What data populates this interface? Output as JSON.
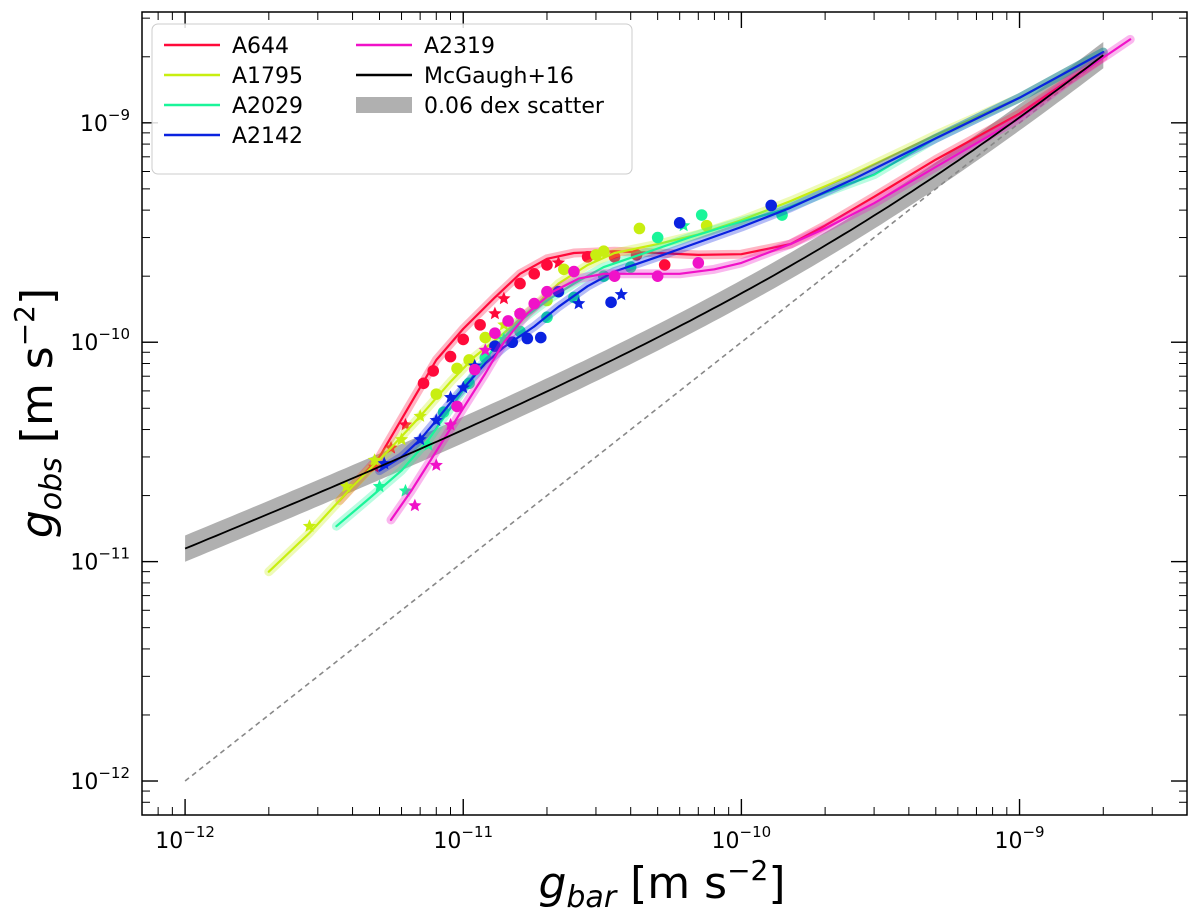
{
  "chart_data": {
    "type": "line",
    "scale": "log-log",
    "xlabel": {
      "sym": "g",
      "sub": "bar",
      "unit": " [m s",
      "sup": "−2",
      "end": "]"
    },
    "ylabel": {
      "sym": "g",
      "sub": "obs",
      "unit": " [m s",
      "sup": "−2",
      "end": "]"
    },
    "xlim": [
      7e-13,
      4e-09
    ],
    "ylim": [
      7e-13,
      3.2e-09
    ],
    "xticks": [
      {
        "value": 1e-12,
        "base": "10",
        "exp": "−12"
      },
      {
        "value": 1e-11,
        "base": "10",
        "exp": "−11"
      },
      {
        "value": 1e-10,
        "base": "10",
        "exp": "−10"
      },
      {
        "value": 1e-09,
        "base": "10",
        "exp": "−9"
      }
    ],
    "yticks": [
      {
        "value": 1e-12,
        "base": "10",
        "exp": "−12"
      },
      {
        "value": 1e-11,
        "base": "10",
        "exp": "−11"
      },
      {
        "value": 1e-10,
        "base": "10",
        "exp": "−10"
      },
      {
        "value": 1e-09,
        "base": "10",
        "exp": "−9"
      }
    ],
    "legend": {
      "position": "top-left",
      "entries": [
        {
          "label": "A644",
          "color": "#ff0a3a",
          "kind": "line"
        },
        {
          "label": "A1795",
          "color": "#c8ee10",
          "kind": "line"
        },
        {
          "label": "A2029",
          "color": "#1af59a",
          "kind": "line"
        },
        {
          "label": "A2142",
          "color": "#0a22e0",
          "kind": "line"
        },
        {
          "label": "A2319",
          "color": "#f012c8",
          "kind": "line"
        },
        {
          "label": "McGaugh+16",
          "color": "#000000",
          "kind": "line"
        },
        {
          "label": "0.06 dex scatter",
          "color": "#b0b0b0",
          "kind": "band"
        }
      ]
    },
    "reference_lines": [
      {
        "name": "one-to-one",
        "style": "dashed",
        "color": "#888888",
        "x": [
          1e-12,
          2e-09
        ],
        "y": [
          1e-12,
          2e-09
        ]
      }
    ],
    "mcgaugh": {
      "name": "McGaugh+16",
      "g_dagger": 1.2e-10,
      "x_range": [
        1e-12,
        2e-09
      ],
      "scatter_dex": 0.06
    },
    "series": [
      {
        "name": "A644",
        "color": "#ff0a3a",
        "curve": [
          [
            3.6e-12,
            1.9e-11
          ],
          [
            5e-12,
            3e-11
          ],
          [
            6.5e-12,
            5.3e-11
          ],
          [
            8e-12,
            8.3e-11
          ],
          [
            1e-11,
            1.15e-10
          ],
          [
            1.3e-11,
            1.6e-10
          ],
          [
            1.6e-11,
            2.05e-10
          ],
          [
            2e-11,
            2.4e-10
          ],
          [
            2.5e-11,
            2.55e-10
          ],
          [
            3.5e-11,
            2.6e-10
          ],
          [
            5e-11,
            2.55e-10
          ],
          [
            7e-11,
            2.5e-10
          ],
          [
            1e-10,
            2.52e-10
          ],
          [
            1.5e-10,
            2.8e-10
          ],
          [
            2e-10,
            3.4e-10
          ],
          [
            3e-10,
            4.6e-10
          ],
          [
            5e-10,
            6.8e-10
          ],
          [
            1e-09,
            1.1e-09
          ],
          [
            2e-09,
            2e-09
          ]
        ],
        "points": [
          [
            4.8e-12,
            2.7e-11,
            "s"
          ],
          [
            5.5e-12,
            3.3e-11,
            "s"
          ],
          [
            6.2e-12,
            4.2e-11,
            "s"
          ],
          [
            7.2e-12,
            6.5e-11,
            "c"
          ],
          [
            7.8e-12,
            7.4e-11,
            "c"
          ],
          [
            9e-12,
            8.6e-11,
            "c"
          ],
          [
            1e-11,
            1.03e-10,
            "c"
          ],
          [
            1.15e-11,
            1.2e-10,
            "c"
          ],
          [
            1.3e-11,
            1.35e-10,
            "s"
          ],
          [
            1.4e-11,
            1.58e-10,
            "s"
          ],
          [
            1.6e-11,
            1.85e-10,
            "c"
          ],
          [
            1.8e-11,
            2.05e-10,
            "c"
          ],
          [
            2e-11,
            2.25e-10,
            "c"
          ],
          [
            2.2e-11,
            2.3e-10,
            "s"
          ],
          [
            2.8e-11,
            2.45e-10,
            "c"
          ],
          [
            3.5e-11,
            2.45e-10,
            "c"
          ],
          [
            4.2e-11,
            2.5e-10,
            "c"
          ],
          [
            5.3e-11,
            2.25e-10,
            "c"
          ]
        ]
      },
      {
        "name": "A1795",
        "color": "#c8ee10",
        "curve": [
          [
            2e-12,
            9e-12
          ],
          [
            2.8e-12,
            1.35e-11
          ],
          [
            4e-12,
            2.2e-11
          ],
          [
            5.5e-12,
            3.3e-11
          ],
          [
            7e-12,
            4.6e-11
          ],
          [
            9e-12,
            6.6e-11
          ],
          [
            1.1e-11,
            8.6e-11
          ],
          [
            1.4e-11,
            1.1e-10
          ],
          [
            1.8e-11,
            1.45e-10
          ],
          [
            2.2e-11,
            1.85e-10
          ],
          [
            2.8e-11,
            2.25e-10
          ],
          [
            3.5e-11,
            2.55e-10
          ],
          [
            5e-11,
            2.8e-10
          ],
          [
            7e-11,
            3.1e-10
          ],
          [
            1e-10,
            3.6e-10
          ],
          [
            1.5e-10,
            4.4e-10
          ],
          [
            2.5e-10,
            5.8e-10
          ],
          [
            5e-10,
            8.8e-10
          ],
          [
            1e-09,
            1.3e-09
          ],
          [
            2e-09,
            2.1e-09
          ]
        ],
        "points": [
          [
            2.8e-12,
            1.45e-11,
            "s"
          ],
          [
            3.8e-12,
            2.2e-11,
            "s"
          ],
          [
            4.8e-12,
            2.9e-11,
            "s"
          ],
          [
            6e-12,
            3.6e-11,
            "s"
          ],
          [
            7e-12,
            4.6e-11,
            "s"
          ],
          [
            8e-12,
            5.8e-11,
            "c"
          ],
          [
            9.5e-12,
            7.6e-11,
            "c"
          ],
          [
            1.05e-11,
            8.3e-11,
            "c"
          ],
          [
            1.2e-11,
            1.05e-10,
            "c"
          ],
          [
            1.4e-11,
            1.2e-10,
            "s"
          ],
          [
            1.6e-11,
            1.35e-10,
            "s"
          ],
          [
            2e-11,
            1.55e-10,
            "c"
          ],
          [
            2.3e-11,
            2.15e-10,
            "c"
          ],
          [
            3e-11,
            2.5e-10,
            "c"
          ],
          [
            3.2e-11,
            2.6e-10,
            "c"
          ],
          [
            4.3e-11,
            3.3e-10,
            "c"
          ],
          [
            7.5e-11,
            3.4e-10,
            "c"
          ]
        ]
      },
      {
        "name": "A2029",
        "color": "#1af59a",
        "curve": [
          [
            3.5e-12,
            1.45e-11
          ],
          [
            4.5e-12,
            1.9e-11
          ],
          [
            6e-12,
            2.6e-11
          ],
          [
            7.5e-12,
            3.6e-11
          ],
          [
            9e-12,
            5e-11
          ],
          [
            1.1e-11,
            7.2e-11
          ],
          [
            1.3e-11,
            9.5e-11
          ],
          [
            1.6e-11,
            1.25e-10
          ],
          [
            2e-11,
            1.55e-10
          ],
          [
            2.5e-11,
            1.85e-10
          ],
          [
            3.2e-11,
            2.2e-10
          ],
          [
            4.5e-11,
            2.55e-10
          ],
          [
            6.5e-11,
            3e-10
          ],
          [
            1e-10,
            3.55e-10
          ],
          [
            1.4e-10,
            4e-10
          ],
          [
            2e-10,
            4.8e-10
          ],
          [
            3e-10,
            5.8e-10
          ],
          [
            5e-10,
            8.5e-10
          ],
          [
            1e-09,
            1.3e-09
          ],
          [
            2e-09,
            2.1e-09
          ]
        ],
        "points": [
          [
            5e-12,
            2.2e-11,
            "s"
          ],
          [
            6.2e-12,
            2.1e-11,
            "s"
          ],
          [
            7.5e-12,
            3.4e-11,
            "s"
          ],
          [
            8.5e-12,
            4.8e-11,
            "c"
          ],
          [
            1.05e-11,
            6.5e-11,
            "c"
          ],
          [
            1.2e-11,
            8.5e-11,
            "c"
          ],
          [
            1.4e-11,
            1.03e-10,
            "s"
          ],
          [
            1.6e-11,
            1.12e-10,
            "c"
          ],
          [
            2e-11,
            1.3e-10,
            "c"
          ],
          [
            2.5e-11,
            1.6e-10,
            "c"
          ],
          [
            3.2e-11,
            2e-10,
            "c"
          ],
          [
            4e-11,
            2.2e-10,
            "c"
          ],
          [
            5e-11,
            3e-10,
            "c"
          ],
          [
            6.2e-11,
            3.4e-10,
            "s"
          ],
          [
            7.2e-11,
            3.8e-10,
            "c"
          ],
          [
            1.4e-10,
            3.8e-10,
            "c"
          ]
        ]
      },
      {
        "name": "A2142",
        "color": "#0a22e0",
        "curve": [
          [
            5e-12,
            2.6e-11
          ],
          [
            6e-12,
            3e-11
          ],
          [
            7e-12,
            3.6e-11
          ],
          [
            8e-12,
            4.4e-11
          ],
          [
            9e-12,
            5.3e-11
          ],
          [
            1.05e-11,
            6.6e-11
          ],
          [
            1.2e-11,
            8e-11
          ],
          [
            1.4e-11,
            9.5e-11
          ],
          [
            1.8e-11,
            1.18e-10
          ],
          [
            2.2e-11,
            1.45e-10
          ],
          [
            2.8e-11,
            1.8e-10
          ],
          [
            3.5e-11,
            2.1e-10
          ],
          [
            5e-11,
            2.45e-10
          ],
          [
            7e-11,
            2.85e-10
          ],
          [
            1e-10,
            3.35e-10
          ],
          [
            1.5e-10,
            4.1e-10
          ],
          [
            2.5e-10,
            5.5e-10
          ],
          [
            5e-10,
            8.5e-10
          ],
          [
            1e-09,
            1.3e-09
          ],
          [
            2e-09,
            2.1e-09
          ]
        ],
        "points": [
          [
            5.2e-12,
            2.8e-11,
            "s"
          ],
          [
            7e-12,
            3.6e-11,
            "s"
          ],
          [
            8e-12,
            4.4e-11,
            "s"
          ],
          [
            9e-12,
            5.6e-11,
            "s"
          ],
          [
            1e-11,
            6.2e-11,
            "s"
          ],
          [
            1.1e-11,
            7.8e-11,
            "s"
          ],
          [
            1.3e-11,
            9.6e-11,
            "c"
          ],
          [
            1.5e-11,
            1e-10,
            "c"
          ],
          [
            1.7e-11,
            1.04e-10,
            "c"
          ],
          [
            1.9e-11,
            1.05e-10,
            "c"
          ],
          [
            2.2e-11,
            1.7e-10,
            "c"
          ],
          [
            2.6e-11,
            1.5e-10,
            "s"
          ],
          [
            3.4e-11,
            1.52e-10,
            "c"
          ],
          [
            3.7e-11,
            1.65e-10,
            "s"
          ],
          [
            6e-11,
            3.5e-10,
            "c"
          ],
          [
            1.28e-10,
            4.2e-10,
            "c"
          ]
        ]
      },
      {
        "name": "A2319",
        "color": "#f012c8",
        "curve": [
          [
            5.5e-12,
            1.55e-11
          ],
          [
            6.5e-12,
            2.1e-11
          ],
          [
            7.5e-12,
            2.8e-11
          ],
          [
            8.5e-12,
            3.6e-11
          ],
          [
            1e-11,
            5e-11
          ],
          [
            1.2e-11,
            7.2e-11
          ],
          [
            1.4e-11,
            1e-10
          ],
          [
            1.7e-11,
            1.35e-10
          ],
          [
            2.1e-11,
            1.7e-10
          ],
          [
            2.6e-11,
            1.95e-10
          ],
          [
            3.2e-11,
            2.05e-10
          ],
          [
            4e-11,
            2.05e-10
          ],
          [
            6e-11,
            2.05e-10
          ],
          [
            8e-11,
            2.15e-10
          ],
          [
            1e-10,
            2.3e-10
          ],
          [
            1.5e-10,
            2.8e-10
          ],
          [
            2e-10,
            3.3e-10
          ],
          [
            3e-10,
            4.3e-10
          ],
          [
            5e-10,
            6.3e-10
          ],
          [
            1e-09,
            1.05e-09
          ],
          [
            1.5e-09,
            1.55e-09
          ],
          [
            2.5e-09,
            2.4e-09
          ]
        ],
        "points": [
          [
            6.7e-12,
            1.8e-11,
            "s"
          ],
          [
            8e-12,
            2.75e-11,
            "s"
          ],
          [
            9e-12,
            4.2e-11,
            "s"
          ],
          [
            9.5e-12,
            5.1e-11,
            "c"
          ],
          [
            1.1e-11,
            7.5e-11,
            "c"
          ],
          [
            1.2e-11,
            9.2e-11,
            "s"
          ],
          [
            1.3e-11,
            1.1e-10,
            "c"
          ],
          [
            1.45e-11,
            1.25e-10,
            "c"
          ],
          [
            1.6e-11,
            1.35e-10,
            "c"
          ],
          [
            1.8e-11,
            1.5e-10,
            "c"
          ],
          [
            2e-11,
            1.7e-10,
            "c"
          ],
          [
            2.5e-11,
            2.1e-10,
            "c"
          ],
          [
            3.5e-11,
            2e-10,
            "c"
          ],
          [
            5e-11,
            2e-10,
            "c"
          ],
          [
            7e-11,
            2.3e-10,
            "c"
          ]
        ]
      }
    ]
  }
}
